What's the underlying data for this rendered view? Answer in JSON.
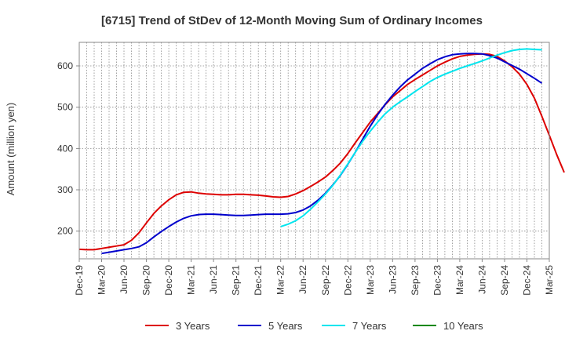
{
  "chart_data": {
    "type": "line",
    "title": "[6715]  Trend of StDev of 12-Month Moving Sum of Ordinary Incomes",
    "xlabel": "",
    "ylabel": "Amount (million yen)",
    "ylim": [
      133,
      657
    ],
    "yticks": [
      200,
      300,
      400,
      500,
      600
    ],
    "grid": true,
    "legend_position": "bottom",
    "x_start": "Dec-19",
    "x_end": "Mar-25",
    "x_ticks": [
      "Dec-19",
      "Mar-20",
      "Jun-20",
      "Sep-20",
      "Dec-20",
      "Mar-21",
      "Jun-21",
      "Sep-21",
      "Dec-21",
      "Mar-22",
      "Jun-22",
      "Sep-22",
      "Dec-22",
      "Mar-23",
      "Jun-23",
      "Sep-23",
      "Dec-23",
      "Mar-24",
      "Jun-24",
      "Sep-24",
      "Dec-24",
      "Mar-25"
    ],
    "series": [
      {
        "name": "3 Years",
        "color": "#dd0000",
        "start_index": 0,
        "values": [
          156,
          155,
          155,
          158,
          161,
          164,
          167,
          178,
          196,
          220,
          243,
          261,
          276,
          288,
          294,
          295,
          292,
          290,
          289,
          288,
          288,
          289,
          289,
          288,
          287,
          285,
          283,
          282,
          284,
          290,
          298,
          308,
          319,
          331,
          347,
          365,
          388,
          414,
          439,
          464,
          485,
          506,
          525,
          540,
          555,
          567,
          578,
          589,
          600,
          609,
          617,
          623,
          626,
          628,
          629,
          628,
          623,
          612,
          598,
          580,
          555,
          522,
          478,
          432,
          385,
          342
        ]
      },
      {
        "name": "5 Years",
        "color": "#0000cc",
        "start_index": 3,
        "values": [
          146,
          149,
          152,
          155,
          158,
          162,
          172,
          186,
          199,
          211,
          222,
          231,
          237,
          240,
          241,
          241,
          240,
          239,
          238,
          238,
          239,
          240,
          241,
          241,
          241,
          242,
          245,
          251,
          261,
          275,
          292,
          312,
          335,
          362,
          391,
          423,
          454,
          482,
          507,
          529,
          549,
          566,
          580,
          594,
          605,
          615,
          622,
          627,
          629,
          630,
          630,
          629,
          625,
          619,
          610,
          601,
          592,
          581,
          570,
          558
        ]
      },
      {
        "name": "7 Years",
        "color": "#00e5ee",
        "start_index": 27,
        "values": [
          211,
          217,
          225,
          237,
          253,
          271,
          290,
          311,
          336,
          363,
          391,
          418,
          442,
          464,
          484,
          500,
          513,
          525,
          538,
          550,
          562,
          572,
          580,
          587,
          594,
          600,
          606,
          612,
          619,
          626,
          632,
          637,
          640,
          641,
          640,
          639
        ]
      },
      {
        "name": "10 Years",
        "color": "#008800",
        "start_index": 0,
        "values": []
      }
    ]
  }
}
